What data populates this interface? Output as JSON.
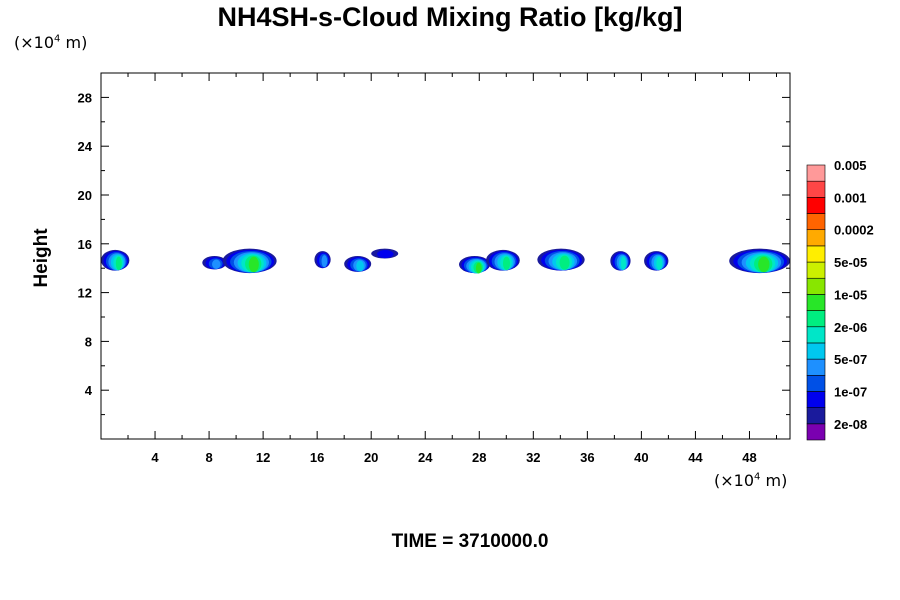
{
  "chart_data": {
    "type": "heatmap",
    "title": "NH4SH-s-Cloud Mixing Ratio [kg/kg]",
    "ylabel": "Height",
    "x_unit": {
      "prefix": "(×10",
      "exp": "4",
      "suffix": " m)"
    },
    "y_unit": {
      "prefix": "(×10",
      "exp": "4",
      "suffix": " m)"
    },
    "xlim": [
      0,
      51
    ],
    "ylim": [
      0,
      30
    ],
    "x_ticks": [
      "4",
      "8",
      "12",
      "16",
      "20",
      "24",
      "28",
      "32",
      "36",
      "40",
      "44",
      "48"
    ],
    "y_ticks": [
      "4",
      "8",
      "12",
      "16",
      "20",
      "24",
      "28"
    ],
    "colorbar": {
      "colors": [
        "#7a00b0",
        "#1a1a9c",
        "#0000ee",
        "#0050e6",
        "#1e90ff",
        "#00c8f0",
        "#00e6c8",
        "#00ee80",
        "#28e628",
        "#88e600",
        "#ccf000",
        "#ffee00",
        "#ffaa00",
        "#ff6400",
        "#ff0000",
        "#ff4646",
        "#ff9999"
      ],
      "labels": [
        "2e-08",
        "1e-07",
        "5e-07",
        "2e-06",
        "1e-05",
        "5e-05",
        "0.0002",
        "0.001",
        "0.005"
      ]
    },
    "clouds": [
      {
        "x": [
          0,
          2.1
        ],
        "y": [
          13.8,
          15.5
        ],
        "peak": 7
      },
      {
        "x": [
          7.5,
          9.3
        ],
        "y": [
          13.9,
          15.0
        ],
        "peak": 4
      },
      {
        "x": [
          9.0,
          13.0
        ],
        "y": [
          13.6,
          15.6
        ],
        "peak": 8
      },
      {
        "x": [
          15.8,
          17.0
        ],
        "y": [
          14.0,
          15.4
        ],
        "peak": 4
      },
      {
        "x": [
          18.0,
          20.0
        ],
        "y": [
          13.7,
          15.0
        ],
        "peak": 5
      },
      {
        "x": [
          20.0,
          22.0
        ],
        "y": [
          14.8,
          15.6
        ],
        "peak": 2
      },
      {
        "x": [
          26.5,
          28.8
        ],
        "y": [
          13.6,
          15.0
        ],
        "peak": 8
      },
      {
        "x": [
          28.5,
          31.0
        ],
        "y": [
          13.8,
          15.5
        ],
        "peak": 7
      },
      {
        "x": [
          32.3,
          35.8
        ],
        "y": [
          13.8,
          15.6
        ],
        "peak": 7
      },
      {
        "x": [
          37.7,
          39.2
        ],
        "y": [
          13.8,
          15.4
        ],
        "peak": 6
      },
      {
        "x": [
          40.2,
          42.0
        ],
        "y": [
          13.8,
          15.4
        ],
        "peak": 6
      },
      {
        "x": [
          46.5,
          51.0
        ],
        "y": [
          13.6,
          15.6
        ],
        "peak": 8
      }
    ]
  },
  "time_label": "TIME = 3710000.0"
}
